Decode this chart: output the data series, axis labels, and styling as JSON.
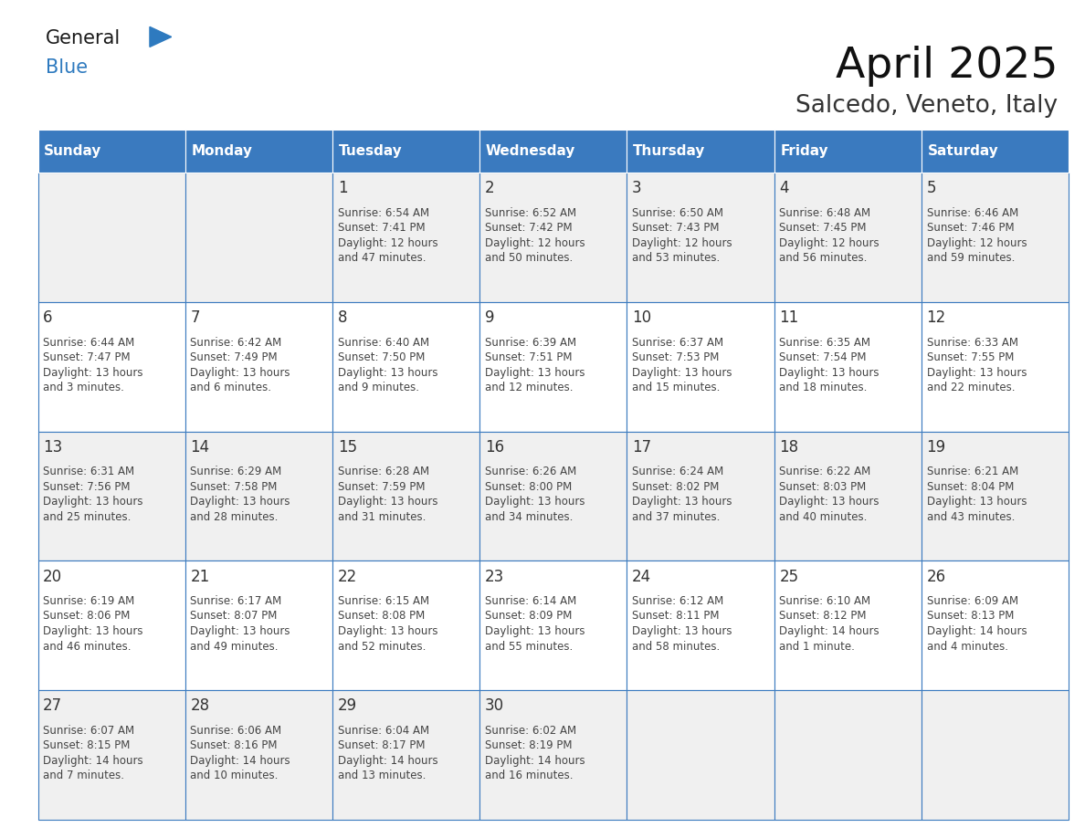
{
  "title": "April 2025",
  "subtitle": "Salcedo, Veneto, Italy",
  "header_bg": "#3a7abf",
  "header_text_color": "#ffffff",
  "cell_bg_even": "#f0f0f0",
  "cell_bg_odd": "#ffffff",
  "grid_line_color": "#3a7abf",
  "day_num_color": "#333333",
  "cell_text_color": "#444444",
  "day_names": [
    "Sunday",
    "Monday",
    "Tuesday",
    "Wednesday",
    "Thursday",
    "Friday",
    "Saturday"
  ],
  "days": [
    {
      "day": 1,
      "col": 2,
      "row": 0,
      "sunrise": "6:54 AM",
      "sunset": "7:41 PM",
      "daylight_line1": "Daylight: 12 hours",
      "daylight_line2": "and 47 minutes."
    },
    {
      "day": 2,
      "col": 3,
      "row": 0,
      "sunrise": "6:52 AM",
      "sunset": "7:42 PM",
      "daylight_line1": "Daylight: 12 hours",
      "daylight_line2": "and 50 minutes."
    },
    {
      "day": 3,
      "col": 4,
      "row": 0,
      "sunrise": "6:50 AM",
      "sunset": "7:43 PM",
      "daylight_line1": "Daylight: 12 hours",
      "daylight_line2": "and 53 minutes."
    },
    {
      "day": 4,
      "col": 5,
      "row": 0,
      "sunrise": "6:48 AM",
      "sunset": "7:45 PM",
      "daylight_line1": "Daylight: 12 hours",
      "daylight_line2": "and 56 minutes."
    },
    {
      "day": 5,
      "col": 6,
      "row": 0,
      "sunrise": "6:46 AM",
      "sunset": "7:46 PM",
      "daylight_line1": "Daylight: 12 hours",
      "daylight_line2": "and 59 minutes."
    },
    {
      "day": 6,
      "col": 0,
      "row": 1,
      "sunrise": "6:44 AM",
      "sunset": "7:47 PM",
      "daylight_line1": "Daylight: 13 hours",
      "daylight_line2": "and 3 minutes."
    },
    {
      "day": 7,
      "col": 1,
      "row": 1,
      "sunrise": "6:42 AM",
      "sunset": "7:49 PM",
      "daylight_line1": "Daylight: 13 hours",
      "daylight_line2": "and 6 minutes."
    },
    {
      "day": 8,
      "col": 2,
      "row": 1,
      "sunrise": "6:40 AM",
      "sunset": "7:50 PM",
      "daylight_line1": "Daylight: 13 hours",
      "daylight_line2": "and 9 minutes."
    },
    {
      "day": 9,
      "col": 3,
      "row": 1,
      "sunrise": "6:39 AM",
      "sunset": "7:51 PM",
      "daylight_line1": "Daylight: 13 hours",
      "daylight_line2": "and 12 minutes."
    },
    {
      "day": 10,
      "col": 4,
      "row": 1,
      "sunrise": "6:37 AM",
      "sunset": "7:53 PM",
      "daylight_line1": "Daylight: 13 hours",
      "daylight_line2": "and 15 minutes."
    },
    {
      "day": 11,
      "col": 5,
      "row": 1,
      "sunrise": "6:35 AM",
      "sunset": "7:54 PM",
      "daylight_line1": "Daylight: 13 hours",
      "daylight_line2": "and 18 minutes."
    },
    {
      "day": 12,
      "col": 6,
      "row": 1,
      "sunrise": "6:33 AM",
      "sunset": "7:55 PM",
      "daylight_line1": "Daylight: 13 hours",
      "daylight_line2": "and 22 minutes."
    },
    {
      "day": 13,
      "col": 0,
      "row": 2,
      "sunrise": "6:31 AM",
      "sunset": "7:56 PM",
      "daylight_line1": "Daylight: 13 hours",
      "daylight_line2": "and 25 minutes."
    },
    {
      "day": 14,
      "col": 1,
      "row": 2,
      "sunrise": "6:29 AM",
      "sunset": "7:58 PM",
      "daylight_line1": "Daylight: 13 hours",
      "daylight_line2": "and 28 minutes."
    },
    {
      "day": 15,
      "col": 2,
      "row": 2,
      "sunrise": "6:28 AM",
      "sunset": "7:59 PM",
      "daylight_line1": "Daylight: 13 hours",
      "daylight_line2": "and 31 minutes."
    },
    {
      "day": 16,
      "col": 3,
      "row": 2,
      "sunrise": "6:26 AM",
      "sunset": "8:00 PM",
      "daylight_line1": "Daylight: 13 hours",
      "daylight_line2": "and 34 minutes."
    },
    {
      "day": 17,
      "col": 4,
      "row": 2,
      "sunrise": "6:24 AM",
      "sunset": "8:02 PM",
      "daylight_line1": "Daylight: 13 hours",
      "daylight_line2": "and 37 minutes."
    },
    {
      "day": 18,
      "col": 5,
      "row": 2,
      "sunrise": "6:22 AM",
      "sunset": "8:03 PM",
      "daylight_line1": "Daylight: 13 hours",
      "daylight_line2": "and 40 minutes."
    },
    {
      "day": 19,
      "col": 6,
      "row": 2,
      "sunrise": "6:21 AM",
      "sunset": "8:04 PM",
      "daylight_line1": "Daylight: 13 hours",
      "daylight_line2": "and 43 minutes."
    },
    {
      "day": 20,
      "col": 0,
      "row": 3,
      "sunrise": "6:19 AM",
      "sunset": "8:06 PM",
      "daylight_line1": "Daylight: 13 hours",
      "daylight_line2": "and 46 minutes."
    },
    {
      "day": 21,
      "col": 1,
      "row": 3,
      "sunrise": "6:17 AM",
      "sunset": "8:07 PM",
      "daylight_line1": "Daylight: 13 hours",
      "daylight_line2": "and 49 minutes."
    },
    {
      "day": 22,
      "col": 2,
      "row": 3,
      "sunrise": "6:15 AM",
      "sunset": "8:08 PM",
      "daylight_line1": "Daylight: 13 hours",
      "daylight_line2": "and 52 minutes."
    },
    {
      "day": 23,
      "col": 3,
      "row": 3,
      "sunrise": "6:14 AM",
      "sunset": "8:09 PM",
      "daylight_line1": "Daylight: 13 hours",
      "daylight_line2": "and 55 minutes."
    },
    {
      "day": 24,
      "col": 4,
      "row": 3,
      "sunrise": "6:12 AM",
      "sunset": "8:11 PM",
      "daylight_line1": "Daylight: 13 hours",
      "daylight_line2": "and 58 minutes."
    },
    {
      "day": 25,
      "col": 5,
      "row": 3,
      "sunrise": "6:10 AM",
      "sunset": "8:12 PM",
      "daylight_line1": "Daylight: 14 hours",
      "daylight_line2": "and 1 minute."
    },
    {
      "day": 26,
      "col": 6,
      "row": 3,
      "sunrise": "6:09 AM",
      "sunset": "8:13 PM",
      "daylight_line1": "Daylight: 14 hours",
      "daylight_line2": "and 4 minutes."
    },
    {
      "day": 27,
      "col": 0,
      "row": 4,
      "sunrise": "6:07 AM",
      "sunset": "8:15 PM",
      "daylight_line1": "Daylight: 14 hours",
      "daylight_line2": "and 7 minutes."
    },
    {
      "day": 28,
      "col": 1,
      "row": 4,
      "sunrise": "6:06 AM",
      "sunset": "8:16 PM",
      "daylight_line1": "Daylight: 14 hours",
      "daylight_line2": "and 10 minutes."
    },
    {
      "day": 29,
      "col": 2,
      "row": 4,
      "sunrise": "6:04 AM",
      "sunset": "8:17 PM",
      "daylight_line1": "Daylight: 14 hours",
      "daylight_line2": "and 13 minutes."
    },
    {
      "day": 30,
      "col": 3,
      "row": 4,
      "sunrise": "6:02 AM",
      "sunset": "8:19 PM",
      "daylight_line1": "Daylight: 14 hours",
      "daylight_line2": "and 16 minutes."
    }
  ],
  "logo_general_color": "#1a1a1a",
  "logo_blue_color": "#2e7abf",
  "logo_triangle_color": "#2e7abf",
  "fig_width": 11.88,
  "fig_height": 9.18,
  "fig_dpi": 100
}
